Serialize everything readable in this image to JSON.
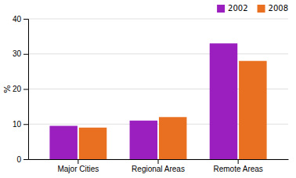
{
  "chart_data": {
    "type": "bar",
    "categories": [
      "Major Cities",
      "Regional Areas",
      "Remote Areas"
    ],
    "series": [
      {
        "name": "2002",
        "color": "#9B1FBF",
        "values": [
          9.5,
          11.0,
          33.0
        ]
      },
      {
        "name": "2008",
        "color": "#E87020",
        "values": [
          9.0,
          12.0,
          28.0
        ]
      }
    ],
    "ylabel": "%",
    "ylim": [
      0,
      40
    ],
    "yticks": [
      0,
      10,
      20,
      30,
      40
    ],
    "grid": true,
    "legend": "upper right"
  }
}
